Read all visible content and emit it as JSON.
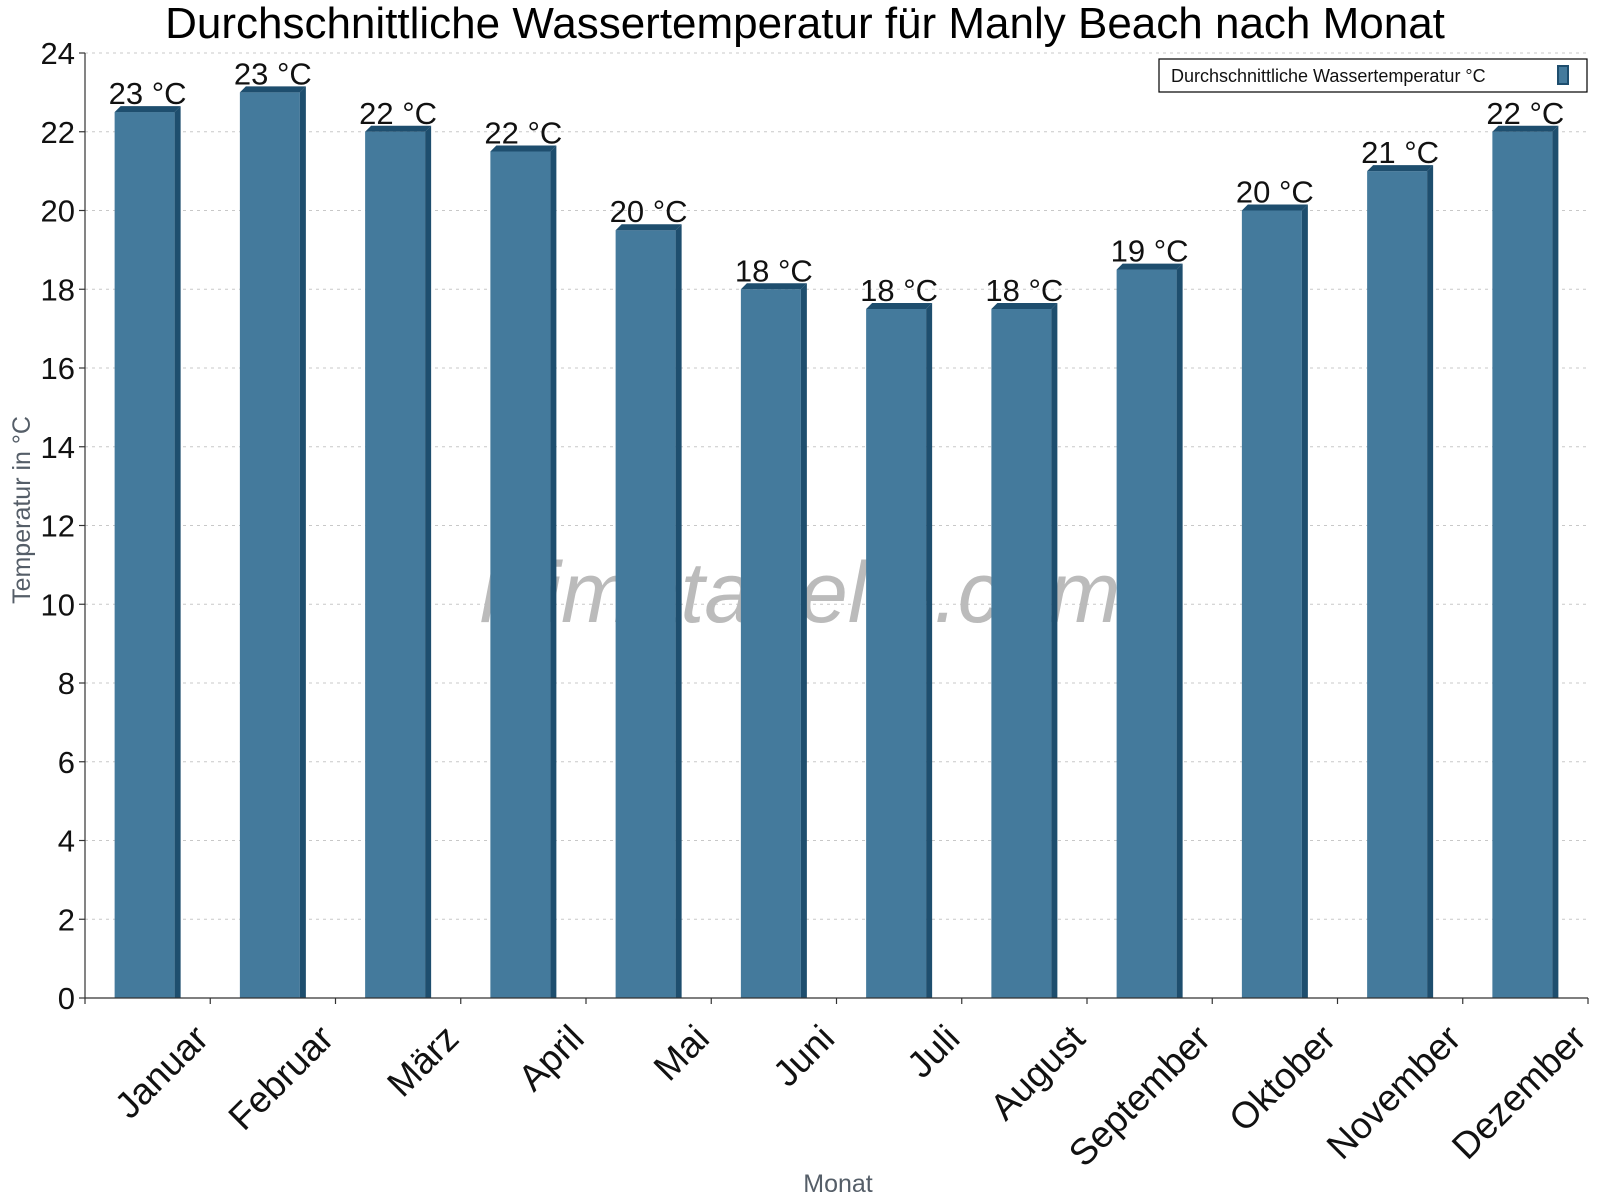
{
  "chart_data": {
    "type": "bar",
    "title": "Durchschnittliche Wassertemperatur für Manly Beach nach Monat",
    "xlabel": "Monat",
    "ylabel": "Temperatur in °C",
    "ylim": [
      0,
      24
    ],
    "yticks": [
      0,
      2,
      4,
      6,
      8,
      10,
      12,
      14,
      16,
      18,
      20,
      22,
      24
    ],
    "grid": true,
    "legend_position": "top-right",
    "categories": [
      "Januar",
      "Februar",
      "März",
      "April",
      "Mai",
      "Juni",
      "Juli",
      "August",
      "September",
      "Oktober",
      "November",
      "Dezember"
    ],
    "series": [
      {
        "name": "Durchschnittliche Wassertemperatur °C",
        "color": "#447a9c",
        "side_color": "#1e4e6e",
        "values": [
          22.5,
          23.0,
          22.0,
          21.5,
          19.5,
          18.0,
          17.5,
          17.5,
          18.5,
          20.0,
          21.0,
          22.0
        ],
        "data_labels": [
          "23 °C",
          "23 °C",
          "22 °C",
          "22 °C",
          "20 °C",
          "18 °C",
          "18 °C",
          "18 °C",
          "19 °C",
          "20 °C",
          "21 °C",
          "22 °C"
        ]
      }
    ],
    "watermark": "klimatabelle.com"
  }
}
